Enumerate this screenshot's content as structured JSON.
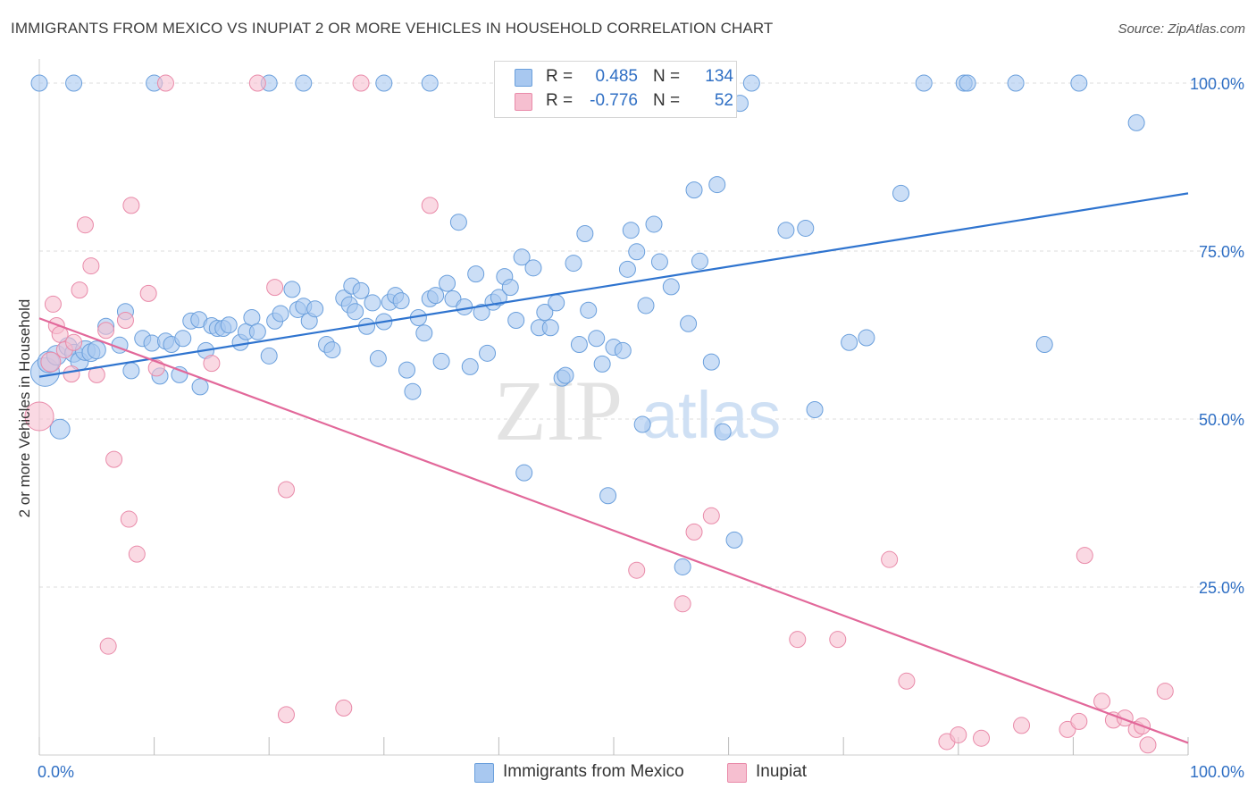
{
  "title": "IMMIGRANTS FROM MEXICO VS INUPIAT 2 OR MORE VEHICLES IN HOUSEHOLD CORRELATION CHART",
  "source": "Source: ZipAtlas.com",
  "watermark": {
    "zip": "ZIP",
    "atlas": "atlas"
  },
  "colors": {
    "blue_fill": "#a8c8f0",
    "blue_stroke": "#6a9fdc",
    "blue_line": "#2f74cf",
    "pink_fill": "#f6bfd0",
    "pink_stroke": "#e98aa9",
    "pink_line": "#e2689a",
    "axis_label": "#2f6fc4",
    "grid": "#dddddd"
  },
  "legend": {
    "rows": [
      {
        "r_label": "R =",
        "r_value": "0.485",
        "n_label": "N =",
        "n_value": "134",
        "color": "#a8c8f0"
      },
      {
        "r_label": "R =",
        "r_value": "-0.776",
        "n_label": "N =",
        "n_value": "52",
        "color": "#f6bfd0"
      }
    ]
  },
  "chart_data": {
    "type": "scatter",
    "title": "IMMIGRANTS FROM MEXICO VS INUPIAT 2 OR MORE VEHICLES IN HOUSEHOLD CORRELATION CHART",
    "xlabel": "",
    "ylabel": "2 or more Vehicles in Household",
    "xlim": [
      0,
      100
    ],
    "ylim": [
      0,
      102
    ],
    "x_tick_labels": [
      "0.0%",
      "100.0%"
    ],
    "y_ticks": [
      25,
      50,
      75,
      100
    ],
    "y_tick_labels": [
      "25.0%",
      "50.0%",
      "75.0%",
      "100.0%"
    ],
    "grid": true,
    "legend_position": "top-center",
    "series": [
      {
        "name": "Immigrants from Mexico",
        "color": "#a8c8f0",
        "trend": {
          "x": [
            0,
            100
          ],
          "y": [
            56.3,
            83.6
          ]
        },
        "points": [
          [
            0.5,
            57.0,
            16
          ],
          [
            0.8,
            58.5,
            12
          ],
          [
            1.8,
            48.5,
            11
          ],
          [
            1.5,
            59.5,
            11
          ],
          [
            2.5,
            60.8,
            10
          ],
          [
            3.0,
            59.8,
            10
          ],
          [
            3.5,
            58.6,
            10
          ],
          [
            4.0,
            60.2,
            11
          ],
          [
            4.5,
            59.9,
            10
          ],
          [
            5.0,
            60.3,
            10
          ],
          [
            5.8,
            63.8,
            9
          ],
          [
            7.0,
            61.0,
            9
          ],
          [
            7.5,
            66.0,
            9
          ],
          [
            8.0,
            57.2,
            9
          ],
          [
            9.0,
            62.0,
            9
          ],
          [
            9.8,
            61.3,
            9
          ],
          [
            10.5,
            56.4,
            9
          ],
          [
            11.0,
            61.6,
            9
          ],
          [
            11.5,
            61.1,
            9
          ],
          [
            12.2,
            56.6,
            9
          ],
          [
            12.5,
            62.0,
            9
          ],
          [
            13.2,
            64.6,
            9
          ],
          [
            13.9,
            64.8,
            9
          ],
          [
            14.0,
            54.8,
            9
          ],
          [
            14.5,
            60.2,
            9
          ],
          [
            15.0,
            63.9,
            9
          ],
          [
            15.5,
            63.5,
            9
          ],
          [
            16.0,
            63.5,
            9
          ],
          [
            16.5,
            64.0,
            9
          ],
          [
            17.5,
            61.4,
            9
          ],
          [
            18.0,
            63.0,
            9
          ],
          [
            18.5,
            65.1,
            9
          ],
          [
            19.0,
            63.0,
            9
          ],
          [
            20.0,
            59.4,
            9
          ],
          [
            20.5,
            64.6,
            9
          ],
          [
            21.0,
            65.7,
            9
          ],
          [
            22.0,
            69.3,
            9
          ],
          [
            22.5,
            66.3,
            9
          ],
          [
            23.0,
            66.8,
            9
          ],
          [
            23.5,
            64.6,
            9
          ],
          [
            24.0,
            66.4,
            9
          ],
          [
            25.0,
            61.1,
            9
          ],
          [
            25.5,
            60.3,
            9
          ],
          [
            26.5,
            68.0,
            9
          ],
          [
            27.0,
            67.0,
            9
          ],
          [
            27.2,
            69.8,
            9
          ],
          [
            27.5,
            66.0,
            9
          ],
          [
            28.0,
            69.1,
            9
          ],
          [
            28.5,
            63.8,
            9
          ],
          [
            29.0,
            67.3,
            9
          ],
          [
            29.5,
            59.0,
            9
          ],
          [
            30.0,
            64.5,
            9
          ],
          [
            30.5,
            67.4,
            9
          ],
          [
            31.0,
            68.4,
            9
          ],
          [
            31.5,
            67.6,
            9
          ],
          [
            32.0,
            57.3,
            9
          ],
          [
            32.5,
            54.1,
            9
          ],
          [
            33.0,
            65.1,
            9
          ],
          [
            33.5,
            62.8,
            9
          ],
          [
            34.0,
            67.9,
            9
          ],
          [
            34.5,
            68.4,
            9
          ],
          [
            35.0,
            58.6,
            9
          ],
          [
            35.5,
            70.2,
            9
          ],
          [
            36.0,
            67.9,
            9
          ],
          [
            36.5,
            79.3,
            9
          ],
          [
            37.0,
            66.7,
            9
          ],
          [
            37.5,
            57.8,
            9
          ],
          [
            38.0,
            71.6,
            9
          ],
          [
            38.5,
            65.9,
            9
          ],
          [
            39.0,
            59.8,
            9
          ],
          [
            39.5,
            67.4,
            9
          ],
          [
            40.0,
            68.1,
            9
          ],
          [
            40.5,
            71.2,
            9
          ],
          [
            41.0,
            69.6,
            9
          ],
          [
            41.5,
            64.7,
            9
          ],
          [
            42.0,
            74.1,
            9
          ],
          [
            42.2,
            42.0,
            9
          ],
          [
            43.0,
            72.5,
            9
          ],
          [
            43.5,
            63.6,
            9
          ],
          [
            44.0,
            65.9,
            9
          ],
          [
            44.5,
            63.6,
            9
          ],
          [
            45.0,
            67.3,
            9
          ],
          [
            45.5,
            56.1,
            9
          ],
          [
            45.8,
            56.5,
            9
          ],
          [
            46.5,
            73.2,
            9
          ],
          [
            47.0,
            61.1,
            9
          ],
          [
            47.5,
            77.6,
            9
          ],
          [
            47.8,
            66.2,
            9
          ],
          [
            48.5,
            62.0,
            9
          ],
          [
            49.0,
            58.2,
            9
          ],
          [
            49.5,
            38.6,
            9
          ],
          [
            50.0,
            60.7,
            9
          ],
          [
            50.8,
            60.2,
            9
          ],
          [
            51.2,
            72.3,
            9
          ],
          [
            51.5,
            78.1,
            9
          ],
          [
            52.0,
            74.9,
            9
          ],
          [
            52.5,
            49.2,
            9
          ],
          [
            52.8,
            66.9,
            9
          ],
          [
            53.5,
            79.0,
            9
          ],
          [
            54.0,
            73.4,
            9
          ],
          [
            55.0,
            69.7,
            9
          ],
          [
            56.0,
            28.0,
            9
          ],
          [
            56.5,
            64.2,
            9
          ],
          [
            57.0,
            84.1,
            9
          ],
          [
            57.5,
            73.5,
            9
          ],
          [
            58.5,
            58.5,
            9
          ],
          [
            59.0,
            84.9,
            9
          ],
          [
            59.5,
            48.1,
            9
          ],
          [
            60.5,
            32.0,
            9
          ],
          [
            61.0,
            97.0,
            9
          ],
          [
            62.0,
            100.0,
            9
          ],
          [
            65.0,
            78.1,
            9
          ],
          [
            66.7,
            78.4,
            9
          ],
          [
            67.5,
            51.4,
            9
          ],
          [
            70.5,
            61.4,
            9
          ],
          [
            72.0,
            62.1,
            9
          ],
          [
            75.0,
            83.6,
            9
          ],
          [
            77.0,
            100.0,
            9
          ],
          [
            80.5,
            100.0,
            9
          ],
          [
            85.0,
            100.0,
            9
          ],
          [
            87.5,
            61.1,
            9
          ],
          [
            90.5,
            100.0,
            9
          ],
          [
            95.5,
            94.1,
            9
          ],
          [
            0.0,
            100.0,
            9
          ],
          [
            3.0,
            100.0,
            9
          ],
          [
            10.0,
            100.0,
            9
          ],
          [
            20.0,
            100.0,
            9
          ],
          [
            23.0,
            100.0,
            9
          ],
          [
            30.0,
            100.0,
            9
          ],
          [
            34.0,
            100.0,
            9
          ],
          [
            47.0,
            100.0,
            9
          ],
          [
            56.0,
            100.0,
            9
          ],
          [
            57.0,
            100.0,
            9
          ],
          [
            80.8,
            100.0,
            9
          ]
        ]
      },
      {
        "name": "Inupiat",
        "color": "#f6bfd0",
        "trend": {
          "x": [
            0,
            100
          ],
          "y": [
            65.0,
            1.8
          ]
        },
        "points": [
          [
            0.0,
            50.4,
            16
          ],
          [
            1.0,
            58.5,
            11
          ],
          [
            1.5,
            63.9,
            9
          ],
          [
            1.2,
            67.1,
            9
          ],
          [
            1.8,
            62.6,
            9
          ],
          [
            2.2,
            60.3,
            9
          ],
          [
            2.8,
            56.7,
            9
          ],
          [
            3.0,
            61.4,
            9
          ],
          [
            3.5,
            69.2,
            9
          ],
          [
            4.0,
            78.9,
            9
          ],
          [
            4.5,
            72.8,
            9
          ],
          [
            5.0,
            56.6,
            9
          ],
          [
            5.8,
            63.2,
            9
          ],
          [
            6.0,
            16.2,
            9
          ],
          [
            6.5,
            44.0,
            9
          ],
          [
            7.5,
            64.7,
            9
          ],
          [
            7.8,
            35.1,
            9
          ],
          [
            8.0,
            81.8,
            9
          ],
          [
            8.5,
            29.9,
            9
          ],
          [
            9.5,
            68.7,
            9
          ],
          [
            10.2,
            57.6,
            9
          ],
          [
            11.0,
            100.0,
            9
          ],
          [
            15.0,
            58.3,
            9
          ],
          [
            19.0,
            100.0,
            9
          ],
          [
            20.5,
            69.6,
            9
          ],
          [
            21.5,
            6.0,
            9
          ],
          [
            21.5,
            39.5,
            9
          ],
          [
            26.5,
            7.0,
            9
          ],
          [
            28.0,
            100.0,
            9
          ],
          [
            34.0,
            81.8,
            9
          ],
          [
            52.0,
            27.5,
            9
          ],
          [
            56.0,
            22.5,
            9
          ],
          [
            57.0,
            33.2,
            9
          ],
          [
            58.5,
            35.6,
            9
          ],
          [
            66.0,
            17.2,
            9
          ],
          [
            69.5,
            17.2,
            9
          ],
          [
            74.0,
            29.1,
            9
          ],
          [
            75.5,
            11.0,
            9
          ],
          [
            79.0,
            2.0,
            9
          ],
          [
            80.0,
            3.0,
            9
          ],
          [
            82.0,
            2.5,
            9
          ],
          [
            85.5,
            4.4,
            9
          ],
          [
            89.5,
            3.8,
            9
          ],
          [
            90.5,
            5.0,
            9
          ],
          [
            91.0,
            29.7,
            9
          ],
          [
            92.5,
            8.0,
            9
          ],
          [
            93.5,
            5.2,
            9
          ],
          [
            94.5,
            5.5,
            9
          ],
          [
            95.5,
            3.8,
            9
          ],
          [
            96.0,
            4.3,
            9
          ],
          [
            96.5,
            1.5,
            9
          ],
          [
            98.0,
            9.5,
            9
          ]
        ]
      }
    ]
  }
}
